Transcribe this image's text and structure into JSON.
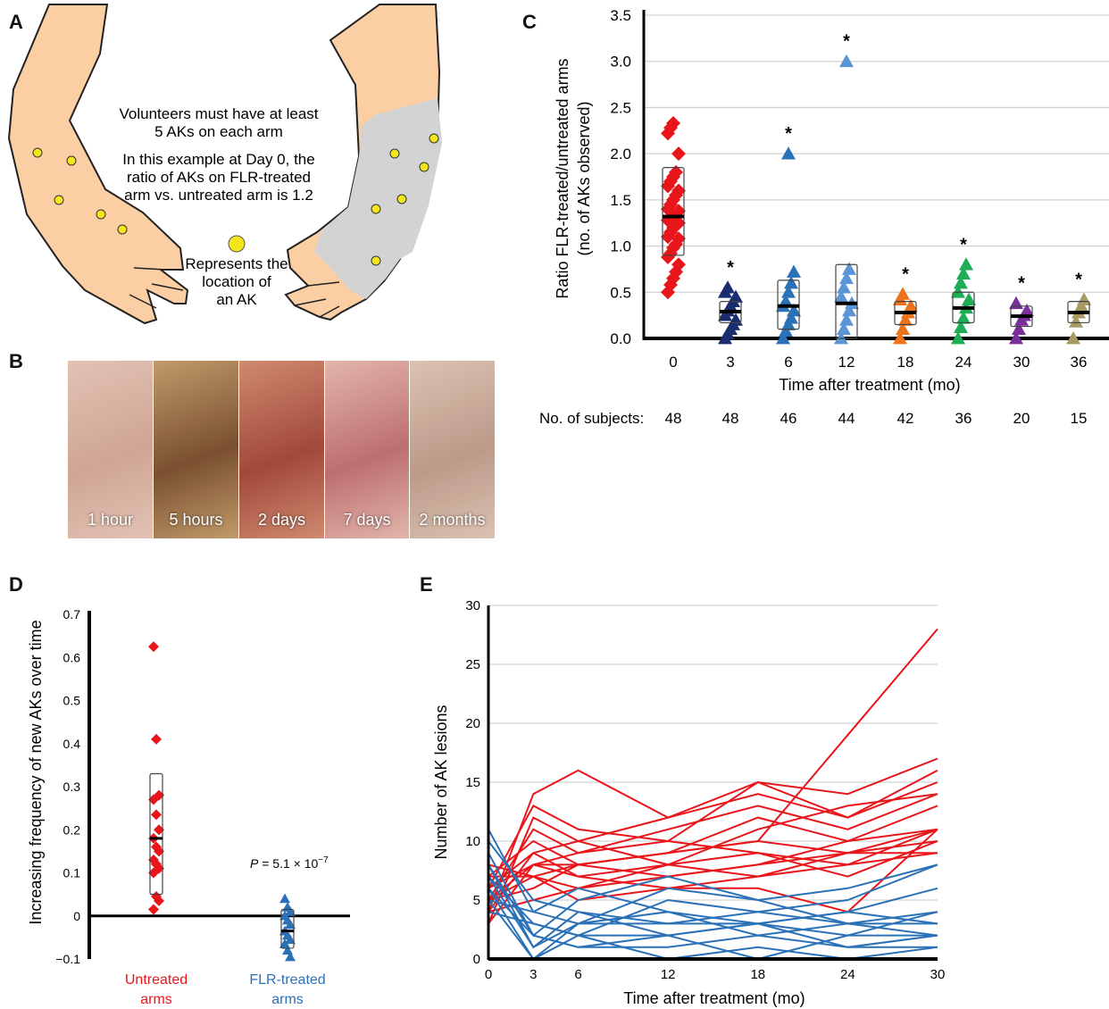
{
  "panels": {
    "a": "A",
    "b": "B",
    "c": "C",
    "d": "D",
    "e": "E"
  },
  "panel_a": {
    "line1": "Volunteers must have at least",
    "line2": "5 AKs on each arm",
    "line3": "In this example at Day 0, the",
    "line4": "ratio of AKs on FLR-treated",
    "line5": "arm vs. untreated arm is 1.2",
    "legend1": "Represents the",
    "legend2": "location of",
    "legend3": "an AK",
    "skin_color": "#fbcfa3",
    "treated_color": "#d3d3d3",
    "ak_color": "#f4e61a"
  },
  "panel_b": {
    "photos": [
      {
        "label": "1 hour",
        "colors": [
          "#cfa594",
          "#e2c2b4"
        ]
      },
      {
        "label": "5 hours",
        "colors": [
          "#7a5030",
          "#c19a6a"
        ]
      },
      {
        "label": "2 days",
        "colors": [
          "#a2493a",
          "#cf8a70"
        ]
      },
      {
        "label": "7 days",
        "colors": [
          "#bd6f70",
          "#e2b5aa"
        ]
      },
      {
        "label": "2 months",
        "colors": [
          "#bc9a8a",
          "#dcc2b0"
        ]
      }
    ]
  },
  "chart_data": [
    {
      "id": "C",
      "type": "scatter",
      "ylabel_line1": "Ratio FLR-treated/untreated arms",
      "ylabel_line2": "(no. of AKs observed)",
      "xlabel": "Time after treatment (mo)",
      "ylim": [
        0,
        3.5
      ],
      "yticks": [
        "0.0",
        "0.5",
        "1.0",
        "1.5",
        "2.0",
        "2.5",
        "3.0",
        "3.5"
      ],
      "categories": [
        "0",
        "3",
        "6",
        "12",
        "18",
        "24",
        "30",
        "36"
      ],
      "subjects_label": "No. of subjects:",
      "subjects": [
        "48",
        "48",
        "46",
        "44",
        "42",
        "36",
        "20",
        "15"
      ],
      "marker_colors": [
        "#e8161b",
        "#1a2d6e",
        "#2b71b8",
        "#5b95d6",
        "#ee7219",
        "#1cad55",
        "#7b2f9a",
        "#a79a63"
      ],
      "markers": [
        "diamond",
        "triangle",
        "triangle",
        "triangle",
        "triangle",
        "triangle",
        "triangle",
        "triangle"
      ],
      "medians": [
        1.32,
        0.29,
        0.35,
        0.38,
        0.28,
        0.33,
        0.24,
        0.28
      ],
      "box_low": [
        0.9,
        0.17,
        0.1,
        0.0,
        0.15,
        0.17,
        0.13,
        0.17
      ],
      "box_high": [
        1.85,
        0.4,
        0.63,
        0.8,
        0.4,
        0.5,
        0.35,
        0.4
      ],
      "significant": [
        "",
        "*",
        "*",
        "*",
        "*",
        "*",
        "*",
        "*"
      ],
      "outliers": [
        [],
        [],
        [
          2.0
        ],
        [
          3.0
        ],
        [],
        [],
        [],
        []
      ],
      "points": [
        [
          0.5,
          0.58,
          0.65,
          0.72,
          0.8,
          0.88,
          0.92,
          0.98,
          1.02,
          1.08,
          1.1,
          1.15,
          1.2,
          1.22,
          1.25,
          1.28,
          1.3,
          1.33,
          1.35,
          1.38,
          1.4,
          1.45,
          1.5,
          1.55,
          1.6,
          1.65,
          1.7,
          1.75,
          1.8,
          2.0,
          2.22,
          2.28,
          2.33
        ],
        [
          0.0,
          0.05,
          0.1,
          0.15,
          0.2,
          0.25,
          0.3,
          0.35,
          0.4,
          0.45,
          0.5,
          0.55
        ],
        [
          0.0,
          0.08,
          0.15,
          0.22,
          0.3,
          0.35,
          0.4,
          0.5,
          0.6,
          0.72
        ],
        [
          0.0,
          0.1,
          0.2,
          0.3,
          0.38,
          0.45,
          0.55,
          0.65,
          0.75
        ],
        [
          0.0,
          0.1,
          0.2,
          0.28,
          0.35,
          0.42,
          0.48
        ],
        [
          0.0,
          0.12,
          0.22,
          0.33,
          0.42,
          0.5,
          0.6,
          0.7,
          0.8
        ],
        [
          0.0,
          0.1,
          0.2,
          0.25,
          0.3,
          0.38
        ],
        [
          0.0,
          0.18,
          0.28,
          0.35,
          0.42
        ]
      ]
    },
    {
      "id": "D",
      "type": "scatter",
      "ylabel": "Increasing frequency of new AKs over time",
      "ylim": [
        -0.1,
        0.7
      ],
      "yticks": [
        "−0.1",
        "0",
        "0.1",
        "0.2",
        "0.3",
        "0.4",
        "0.5",
        "0.6",
        "0.7"
      ],
      "groups": [
        {
          "line1": "Untreated",
          "line2": "arms",
          "color": "#e8161b",
          "marker": "diamond",
          "values": [
            0.625,
            0.41,
            0.28,
            0.27,
            0.235,
            0.2,
            0.18,
            0.16,
            0.15,
            0.13,
            0.12,
            0.11,
            0.1,
            0.045,
            0.035,
            0.015
          ],
          "median": 0.18,
          "box_low": 0.05,
          "box_high": 0.33
        },
        {
          "line1": "FLR-treated",
          "line2": "arms",
          "color": "#2b71b8",
          "marker": "triangle",
          "values": [
            0.04,
            0.02,
            0.01,
            0.0,
            -0.01,
            -0.02,
            -0.035,
            -0.045,
            -0.055,
            -0.065,
            -0.08,
            -0.095
          ],
          "median": -0.035,
          "box_low": -0.075,
          "box_high": 0.015
        }
      ],
      "p_label": "P",
      "p_value": "= 5.1 × 10",
      "p_exp": "−7"
    },
    {
      "id": "E",
      "type": "line",
      "ylabel": "Number of AK lesions",
      "xlabel": "Time after treatment (mo)",
      "ylim": [
        0,
        30
      ],
      "xlim": [
        0,
        30
      ],
      "xticks": [
        0,
        3,
        6,
        12,
        18,
        24,
        30
      ],
      "yticks": [
        0,
        5,
        10,
        15,
        20,
        25,
        30
      ],
      "x": [
        0,
        3,
        6,
        12,
        18,
        24,
        30
      ],
      "series": [
        {
          "group": "untreated",
          "color": "#e8161b",
          "values": [
            5,
            8,
            8,
            9,
            10,
            19,
            28
          ]
        },
        {
          "group": "untreated",
          "color": "#e8161b",
          "values": [
            4,
            14,
            16,
            12,
            15,
            14,
            17
          ]
        },
        {
          "group": "untreated",
          "color": "#e8161b",
          "values": [
            6,
            13,
            11,
            10,
            15,
            12,
            16
          ]
        },
        {
          "group": "untreated",
          "color": "#e8161b",
          "values": [
            3,
            12,
            10,
            12,
            14,
            12,
            15
          ]
        },
        {
          "group": "untreated",
          "color": "#e8161b",
          "values": [
            5,
            11,
            9,
            11,
            13,
            11,
            14
          ]
        },
        {
          "group": "untreated",
          "color": "#e8161b",
          "values": [
            7,
            10,
            8,
            9,
            12,
            10,
            13
          ]
        },
        {
          "group": "untreated",
          "color": "#e8161b",
          "values": [
            4,
            9,
            10,
            8,
            11,
            13,
            14
          ]
        },
        {
          "group": "untreated",
          "color": "#e8161b",
          "values": [
            6,
            8,
            9,
            10,
            9,
            8,
            11
          ]
        },
        {
          "group": "untreated",
          "color": "#e8161b",
          "values": [
            8,
            7,
            8,
            9,
            10,
            9,
            11
          ]
        },
        {
          "group": "untreated",
          "color": "#e8161b",
          "values": [
            5,
            6,
            8,
            7,
            8,
            10,
            11
          ]
        },
        {
          "group": "untreated",
          "color": "#e8161b",
          "values": [
            3,
            8,
            7,
            8,
            9,
            7,
            10
          ]
        },
        {
          "group": "untreated",
          "color": "#e8161b",
          "values": [
            7,
            7,
            6,
            7,
            8,
            9,
            10
          ]
        },
        {
          "group": "untreated",
          "color": "#e8161b",
          "values": [
            6,
            9,
            7,
            6,
            7,
            8,
            9
          ]
        },
        {
          "group": "untreated",
          "color": "#e8161b",
          "values": [
            4,
            5,
            6,
            8,
            7,
            9,
            9
          ]
        },
        {
          "group": "untreated",
          "color": "#e8161b",
          "values": [
            5,
            7,
            5,
            6,
            6,
            4,
            11
          ]
        },
        {
          "group": "treated",
          "color": "#2b71b8",
          "values": [
            11,
            4,
            3,
            3,
            3,
            4,
            6
          ]
        },
        {
          "group": "treated",
          "color": "#2b71b8",
          "values": [
            10,
            5,
            4,
            3,
            4,
            5,
            8
          ]
        },
        {
          "group": "treated",
          "color": "#2b71b8",
          "values": [
            9,
            2,
            5,
            7,
            5,
            3,
            4
          ]
        },
        {
          "group": "treated",
          "color": "#2b71b8",
          "values": [
            8,
            1,
            3,
            4,
            2,
            3,
            3
          ]
        },
        {
          "group": "treated",
          "color": "#2b71b8",
          "values": [
            7,
            3,
            2,
            2,
            3,
            2,
            2
          ]
        },
        {
          "group": "treated",
          "color": "#2b71b8",
          "values": [
            6,
            2,
            1,
            1,
            2,
            1,
            1
          ]
        },
        {
          "group": "treated",
          "color": "#2b71b8",
          "values": [
            5,
            4,
            6,
            4,
            3,
            4,
            3
          ]
        },
        {
          "group": "treated",
          "color": "#2b71b8",
          "values": [
            6,
            0,
            2,
            0,
            1,
            0,
            1
          ]
        },
        {
          "group": "treated",
          "color": "#2b71b8",
          "values": [
            4,
            3,
            2,
            5,
            4,
            3,
            2
          ]
        },
        {
          "group": "treated",
          "color": "#2b71b8",
          "values": [
            7,
            1,
            4,
            2,
            0,
            2,
            4
          ]
        },
        {
          "group": "treated",
          "color": "#2b71b8",
          "values": [
            5,
            0,
            3,
            6,
            5,
            6,
            8
          ]
        },
        {
          "group": "treated",
          "color": "#2b71b8",
          "values": [
            8,
            2,
            1,
            2,
            3,
            1,
            2
          ]
        }
      ]
    }
  ]
}
